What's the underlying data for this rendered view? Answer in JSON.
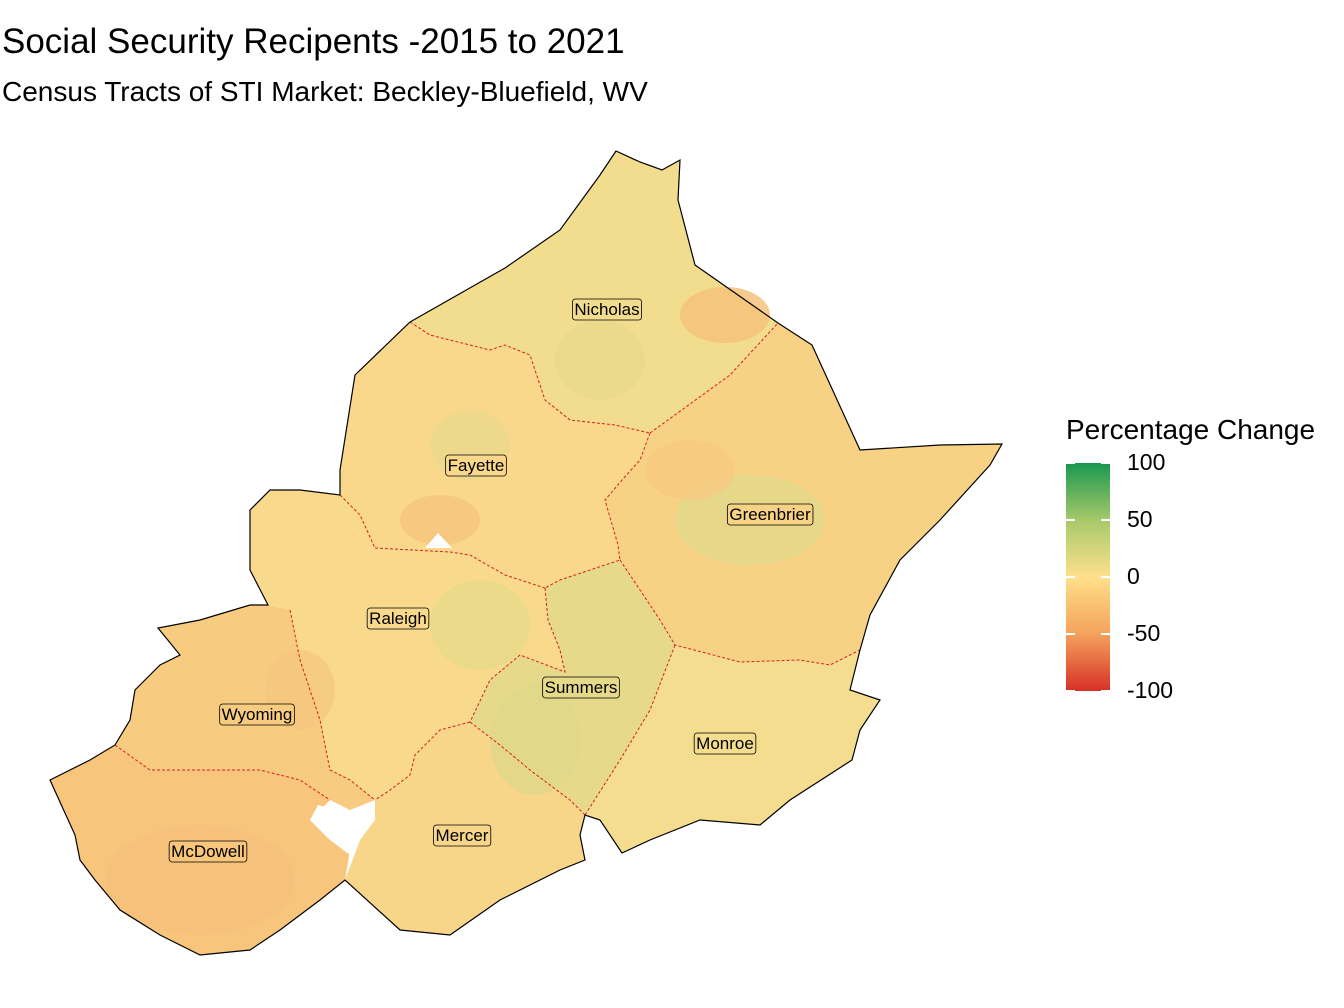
{
  "title": "Social Security Recipents -2015 to 2021",
  "subtitle": "Census Tracts of STI Market: Beckley-Bluefield, WV",
  "legend": {
    "title": "Percentage Change",
    "ticks": [
      "100",
      "50",
      "0",
      "-50",
      "-100"
    ],
    "colors": {
      "high": "#1a9850",
      "mid_high": "#a6c96a",
      "mid": "#fee08b",
      "mid_low": "#f4a25c",
      "low": "#d73027"
    }
  },
  "counties": [
    {
      "name": "Nicholas",
      "color": "#f2dc8e"
    },
    {
      "name": "Fayette",
      "color": "#f9d88c"
    },
    {
      "name": "Greenbrier",
      "color": "#f8d284"
    },
    {
      "name": "Raleigh",
      "color": "#f9d98c"
    },
    {
      "name": "Summers",
      "color": "#e6d98a"
    },
    {
      "name": "Monroe",
      "color": "#f4dd8e"
    },
    {
      "name": "Wyoming",
      "color": "#f8cc80"
    },
    {
      "name": "Mercer",
      "color": "#f7d689"
    },
    {
      "name": "McDowell",
      "color": "#f7c57c"
    }
  ]
}
